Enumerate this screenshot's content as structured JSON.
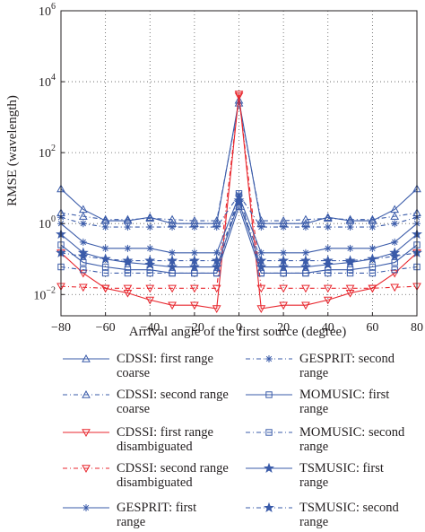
{
  "chart_data": {
    "type": "line",
    "xlabel": "Arrival angle of the first source (degree)",
    "ylabel": "RMSE (wavelength)",
    "xlim": [
      -80,
      80
    ],
    "xscale": "linear",
    "yscale": "log",
    "ylim_exp": [
      -2.6,
      6
    ],
    "x_ticks": [
      -80,
      -60,
      -40,
      -20,
      0,
      20,
      40,
      60,
      80
    ],
    "y_ticks_exp": [
      -2,
      0,
      2,
      4,
      6
    ],
    "grid": true,
    "legend_position": "below",
    "x": [
      -80,
      -70,
      -60,
      -50,
      -40,
      -30,
      -20,
      -10,
      0,
      10,
      20,
      30,
      40,
      50,
      60,
      70,
      80
    ],
    "series": [
      {
        "name": "CDSSI: first range coarse",
        "color": "#3a5ba9",
        "dash": "solid",
        "marker": "triangle-up",
        "values": [
          9.5,
          2.5,
          1.2,
          1.2,
          1.5,
          1.0,
          1.0,
          1.0,
          3000,
          1.0,
          1.0,
          1.0,
          1.5,
          1.2,
          1.2,
          2.5,
          9.5
        ]
      },
      {
        "name": "CDSSI: second range coarse",
        "color": "#3a5ba9",
        "dash": "dashed",
        "marker": "triangle-up",
        "values": [
          2.0,
          1.6,
          1.3,
          1.3,
          1.4,
          1.3,
          1.2,
          1.2,
          2500,
          1.2,
          1.2,
          1.3,
          1.4,
          1.3,
          1.3,
          1.6,
          2.0
        ]
      },
      {
        "name": "CDSSI: first range disambiguated",
        "color": "#e8262d",
        "dash": "solid",
        "marker": "triangle-down",
        "values": [
          0.15,
          0.04,
          0.015,
          0.011,
          0.007,
          0.005,
          0.005,
          0.004,
          4500,
          0.004,
          0.005,
          0.005,
          0.007,
          0.011,
          0.015,
          0.04,
          0.15
        ]
      },
      {
        "name": "CDSSI: second range disambiguated",
        "color": "#e8262d",
        "dash": "dashed",
        "marker": "triangle-down",
        "values": [
          0.017,
          0.016,
          0.015,
          0.015,
          0.015,
          0.015,
          0.015,
          0.015,
          4000,
          0.015,
          0.015,
          0.015,
          0.015,
          0.015,
          0.015,
          0.016,
          0.017
        ]
      },
      {
        "name": "GESPRIT: first range",
        "color": "#3a5ba9",
        "dash": "solid",
        "marker": "asterisk",
        "values": [
          1.0,
          0.3,
          0.2,
          0.2,
          0.2,
          0.15,
          0.15,
          0.15,
          6.0,
          0.15,
          0.15,
          0.15,
          0.2,
          0.2,
          0.2,
          0.3,
          1.0
        ]
      },
      {
        "name": "GESPRIT: second range",
        "color": "#3a5ba9",
        "dash": "dashed",
        "marker": "asterisk",
        "values": [
          1.5,
          1.0,
          0.8,
          0.8,
          0.8,
          0.8,
          0.8,
          0.8,
          6.5,
          0.8,
          0.8,
          0.8,
          0.8,
          0.8,
          0.8,
          1.0,
          1.5
        ]
      },
      {
        "name": "MOMUSIC: first range",
        "color": "#3a5ba9",
        "dash": "solid",
        "marker": "square",
        "values": [
          0.25,
          0.08,
          0.06,
          0.05,
          0.05,
          0.04,
          0.04,
          0.04,
          3.0,
          0.04,
          0.04,
          0.04,
          0.05,
          0.05,
          0.06,
          0.08,
          0.25
        ]
      },
      {
        "name": "MOMUSIC: second range",
        "color": "#3a5ba9",
        "dash": "dashed",
        "marker": "square",
        "values": [
          0.06,
          0.05,
          0.04,
          0.04,
          0.04,
          0.04,
          0.04,
          0.04,
          7.0,
          0.04,
          0.04,
          0.04,
          0.04,
          0.04,
          0.04,
          0.05,
          0.06
        ]
      },
      {
        "name": "TSMUSIC: first range",
        "color": "#3a5ba9",
        "dash": "solid",
        "marker": "star",
        "values": [
          0.5,
          0.15,
          0.1,
          0.08,
          0.07,
          0.06,
          0.06,
          0.06,
          4.0,
          0.06,
          0.06,
          0.06,
          0.07,
          0.08,
          0.1,
          0.15,
          0.5
        ]
      },
      {
        "name": "TSMUSIC: second range",
        "color": "#3a5ba9",
        "dash": "dashed",
        "marker": "star",
        "values": [
          0.15,
          0.12,
          0.1,
          0.09,
          0.09,
          0.09,
          0.09,
          0.09,
          4.5,
          0.09,
          0.09,
          0.09,
          0.09,
          0.09,
          0.1,
          0.12,
          0.15
        ]
      }
    ]
  },
  "legend": {
    "items": [
      {
        "label": "CDSSI: first range coarse",
        "line1": "CDSSI: first range",
        "line2": "coarse",
        "series": 0
      },
      {
        "label": "CDSSI: second range coarse",
        "line1": "CDSSI: second range",
        "line2": "coarse",
        "series": 1
      },
      {
        "label": "CDSSI: first range disambiguated",
        "line1": "CDSSI: first range",
        "line2": "disambiguated",
        "series": 2
      },
      {
        "label": "CDSSI: second range disambiguated",
        "line1": "CDSSI: second range",
        "line2": "disambiguated",
        "series": 3
      },
      {
        "label": "GESPRIT: first range",
        "line1": "GESPRIT: first",
        "line2": "range",
        "series": 4
      },
      {
        "label": "GESPRIT: second range",
        "line1": "GESPRIT: second",
        "line2": "range",
        "series": 5
      },
      {
        "label": "MOMUSIC: first range",
        "line1": "MOMUSIC: first",
        "line2": "range",
        "series": 6
      },
      {
        "label": "MOMUSIC: second range",
        "line1": "MOMUSIC: second",
        "line2": "range",
        "series": 7
      },
      {
        "label": "TSMUSIC: first range",
        "line1": "TSMUSIC: first",
        "line2": "range",
        "series": 8
      },
      {
        "label": "TSMUSIC: second range",
        "line1": "TSMUSIC: second",
        "line2": "range",
        "series": 9
      }
    ]
  }
}
